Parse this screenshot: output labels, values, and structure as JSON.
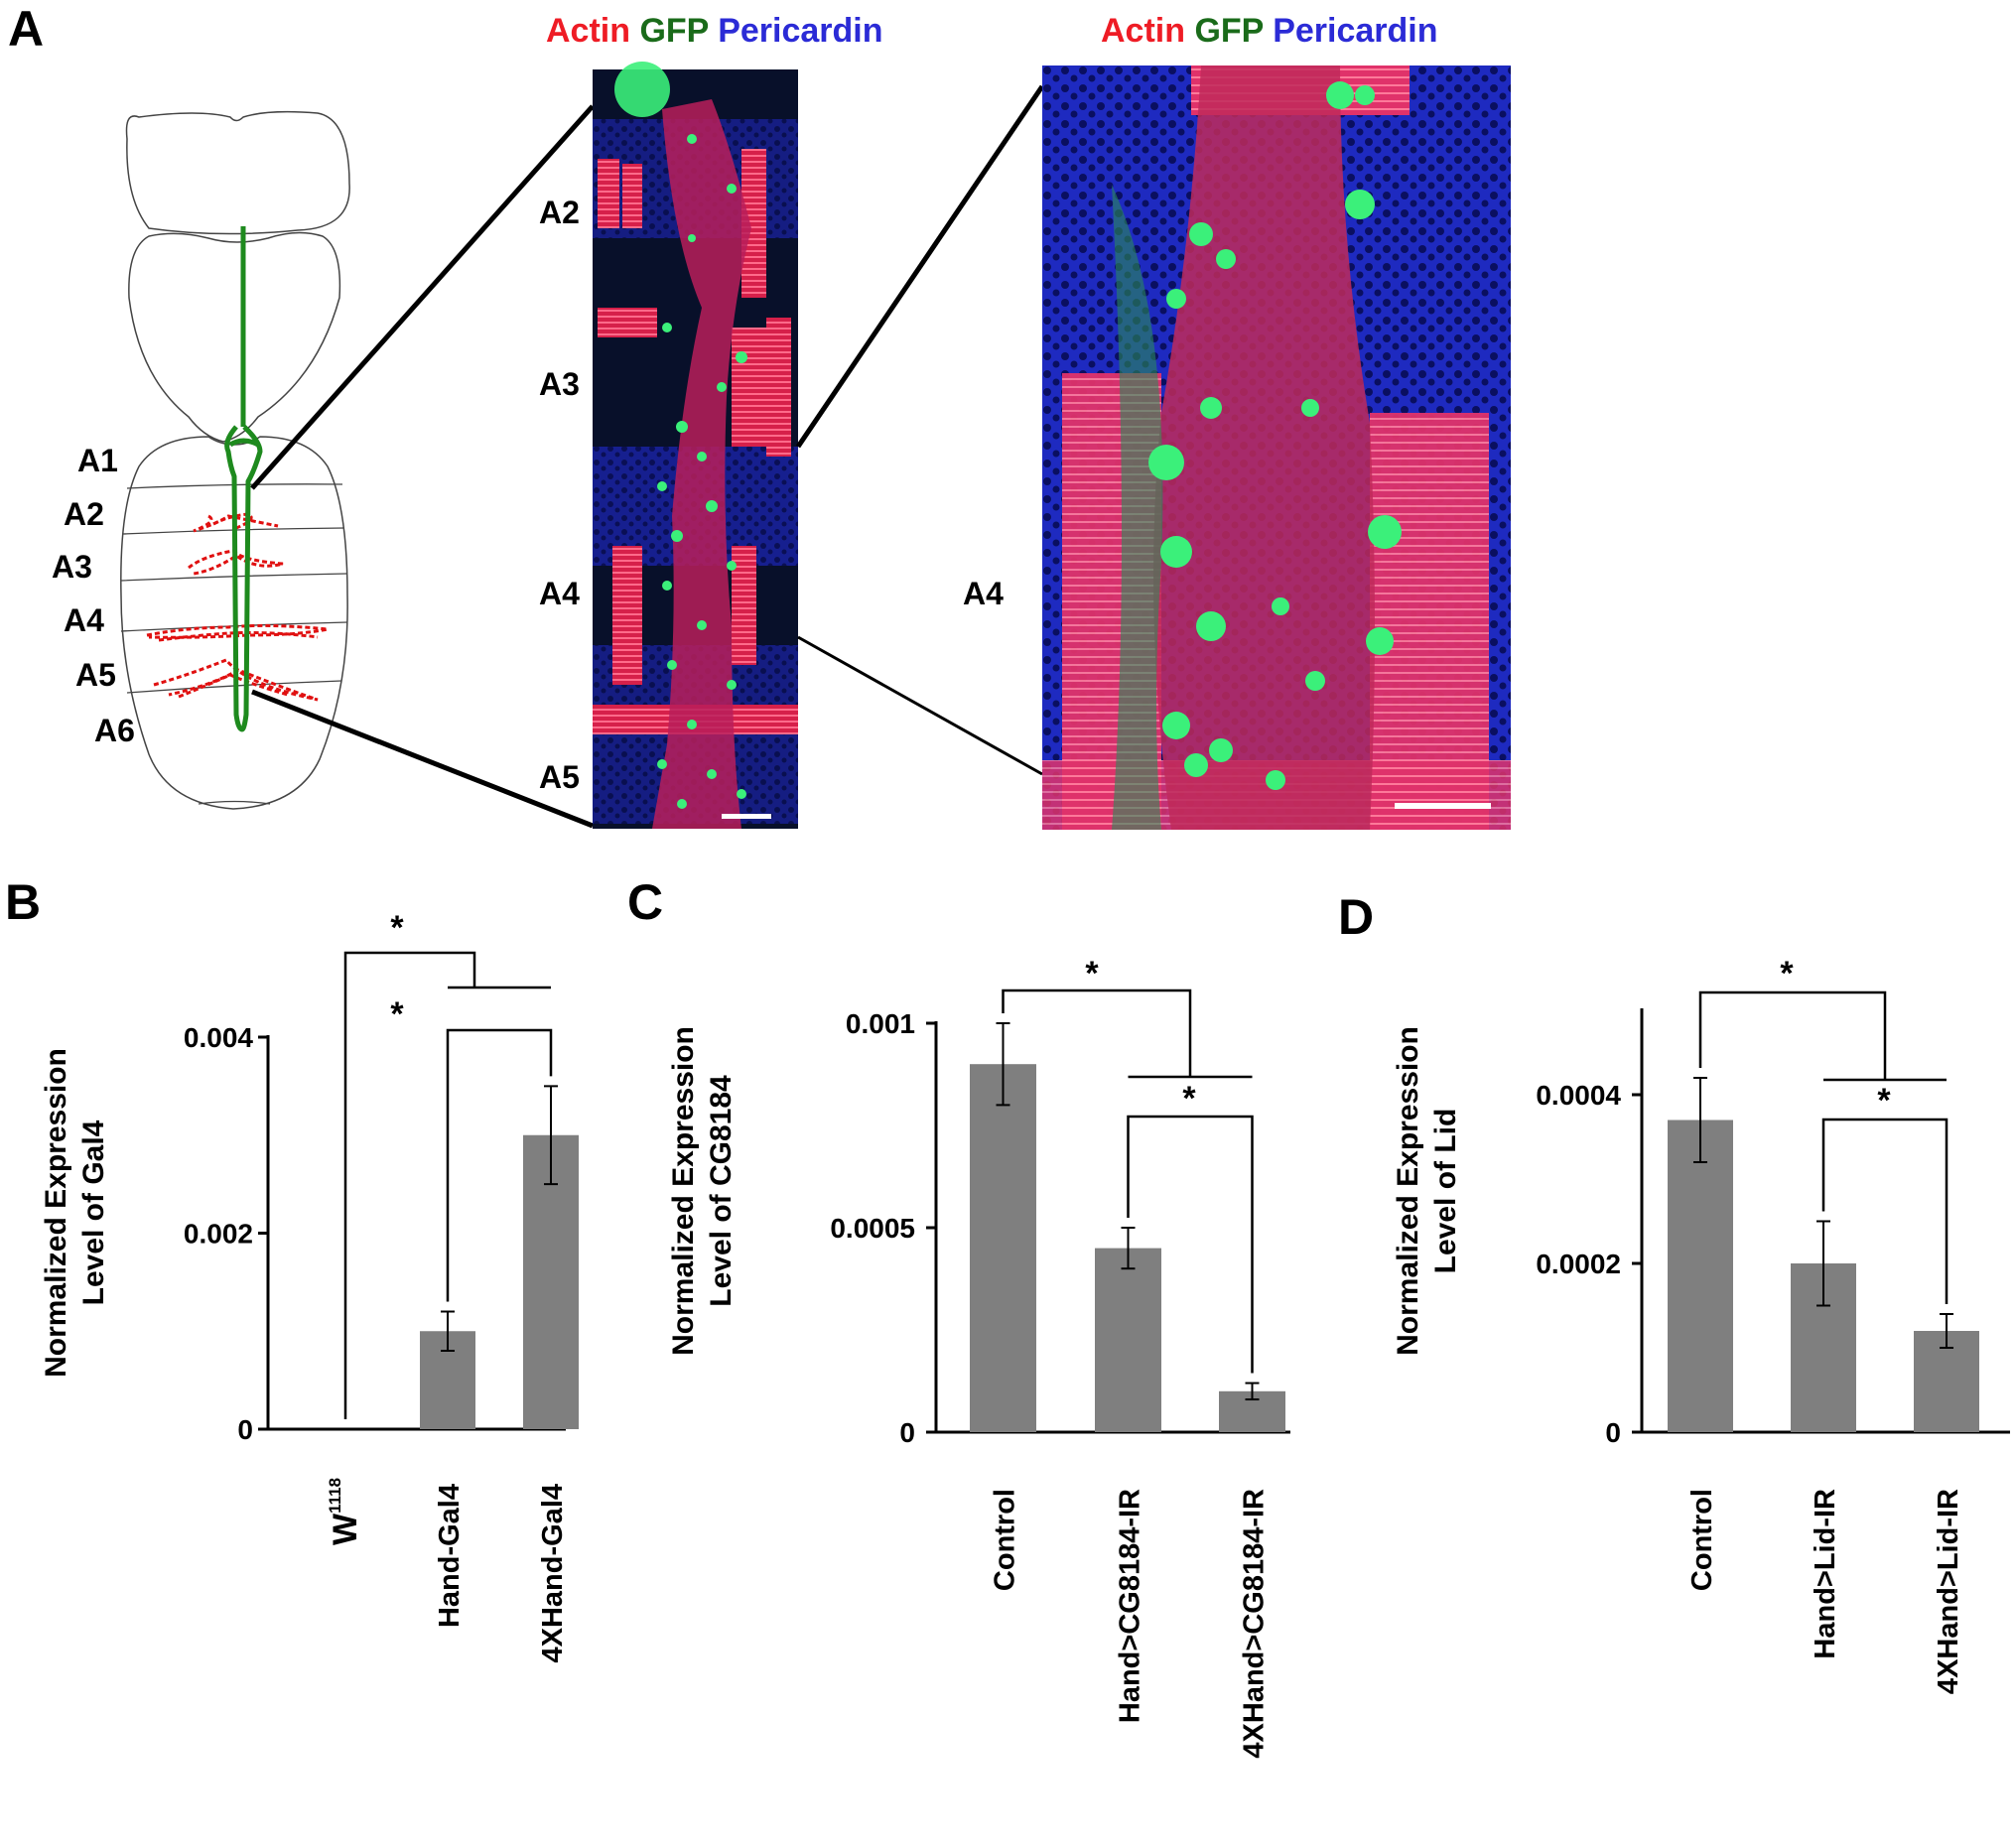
{
  "panel_a": {
    "letter": "A",
    "segments": [
      "A1",
      "A2",
      "A3",
      "A4",
      "A5",
      "A6"
    ],
    "stains": {
      "actin": "Actin",
      "gfp": "GFP",
      "pericardin": "Pericardin",
      "colors": {
        "actin": "#ee1c25",
        "gfp": "#1a6b1a",
        "pericardin": "#2b2bd6"
      }
    },
    "micro1_labels": [
      "A2",
      "A3",
      "A4",
      "A5"
    ],
    "micro2_label": "A4"
  },
  "chart_data": [
    {
      "panel": "B",
      "type": "bar",
      "ylabel": [
        "Normalized Expression",
        "Level of Gal4"
      ],
      "categories": [
        "W1118",
        "Hand-Gal4",
        "4XHand-Gal4"
      ],
      "category_display": [
        {
          "main": "W",
          "sup": "1118"
        },
        {
          "main": "Hand-Gal4",
          "sup": ""
        },
        {
          "main": "4XHand-Gal4",
          "sup": ""
        }
      ],
      "values": [
        0,
        0.001,
        0.003
      ],
      "errors": [
        0,
        0.0002,
        0.0005
      ],
      "ylim": [
        0,
        0.004
      ],
      "yticks": [
        0,
        0.002,
        0.004
      ],
      "ytick_labels": [
        "0",
        "0.002",
        "0.004"
      ],
      "significance": [
        "*",
        "*"
      ],
      "bar_color": "#7f7f7f"
    },
    {
      "panel": "C",
      "type": "bar",
      "ylabel": [
        "Normalized Expression",
        "Level of CG8184"
      ],
      "categories": [
        "Control",
        "Hand>CG8184-IR",
        "4XHand>CG8184-IR"
      ],
      "values": [
        0.0009,
        0.00045,
        0.0001
      ],
      "errors": [
        0.0001,
        5e-05,
        2e-05
      ],
      "ylim": [
        0,
        0.001
      ],
      "yticks": [
        0,
        0.0005,
        0.001
      ],
      "ytick_labels": [
        "0",
        "0.0005",
        "0.001"
      ],
      "significance": [
        "*",
        "*"
      ],
      "bar_color": "#7f7f7f"
    },
    {
      "panel": "D",
      "type": "bar",
      "ylabel": [
        "Normalized Expression",
        "Level of Lid"
      ],
      "categories": [
        "Control",
        "Hand>Lid-IR",
        "4XHand>Lid-IR"
      ],
      "values": [
        0.00037,
        0.0002,
        0.00012
      ],
      "errors": [
        5e-05,
        5e-05,
        2e-05
      ],
      "ylim": [
        0,
        0.0005
      ],
      "yticks": [
        0,
        0.0002,
        0.0004
      ],
      "ytick_labels": [
        "0",
        "0.0002",
        "0.0004"
      ],
      "significance": [
        "*",
        "*"
      ],
      "bar_color": "#7f7f7f"
    }
  ]
}
